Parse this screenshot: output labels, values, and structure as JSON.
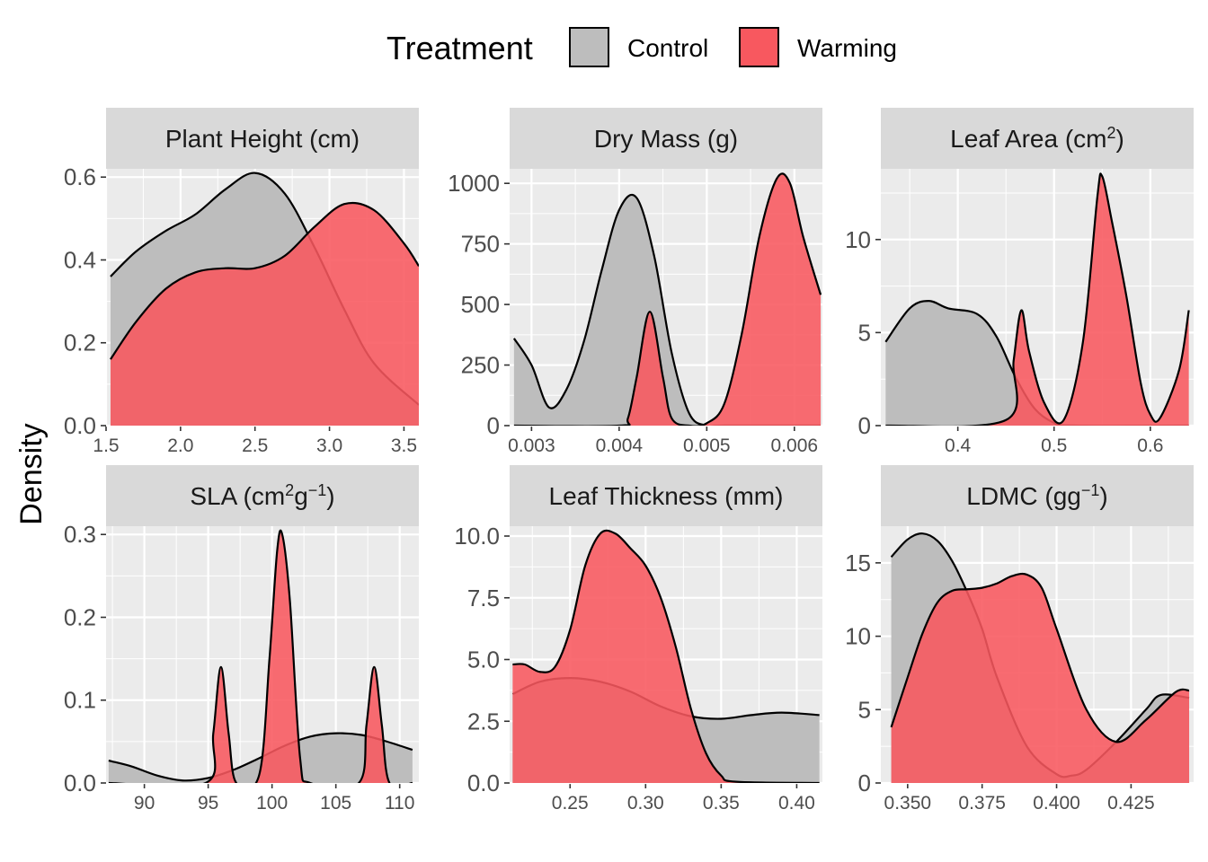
{
  "legend": {
    "title": "Treatment",
    "items": [
      {
        "label": "Control",
        "color": "#bdbdbd"
      },
      {
        "label": "Warming",
        "color": "#f8585f"
      }
    ]
  },
  "ylabel": "Density",
  "colors": {
    "control": "#bdbdbd",
    "warming": "#f8585f",
    "overlap": "#de4b50",
    "outline": "#000000"
  },
  "chart_data": [
    {
      "type": "area",
      "title": "Plant Height (cm)",
      "xlim": [
        1.5,
        3.6
      ],
      "ylim": [
        0,
        0.62
      ],
      "xticks": [
        1.5,
        2.0,
        2.5,
        3.0,
        3.5
      ],
      "xtick_labels": [
        "1.5",
        "2.0",
        "2.5",
        "3.0",
        "3.5"
      ],
      "yticks": [
        0.0,
        0.2,
        0.4,
        0.6
      ],
      "ytick_labels": [
        "0.0",
        "0.2",
        "0.4",
        "0.6"
      ],
      "series": [
        {
          "name": "Control",
          "x": [
            1.53,
            1.7,
            1.9,
            2.1,
            2.3,
            2.5,
            2.7,
            2.9,
            3.1,
            3.3,
            3.6
          ],
          "y": [
            0.36,
            0.42,
            0.47,
            0.51,
            0.57,
            0.61,
            0.56,
            0.43,
            0.28,
            0.15,
            0.05
          ]
        },
        {
          "name": "Warming",
          "x": [
            1.53,
            1.7,
            1.9,
            2.1,
            2.3,
            2.5,
            2.7,
            2.9,
            3.1,
            3.3,
            3.5,
            3.6
          ],
          "y": [
            0.16,
            0.25,
            0.33,
            0.37,
            0.38,
            0.38,
            0.41,
            0.48,
            0.535,
            0.52,
            0.44,
            0.385
          ]
        }
      ]
    },
    {
      "type": "area",
      "title": "Dry Mass (g)",
      "xlim": [
        0.00275,
        0.00632
      ],
      "ylim": [
        0,
        1060
      ],
      "xticks": [
        0.003,
        0.004,
        0.005,
        0.006
      ],
      "xtick_labels": [
        "0.003",
        "0.004",
        "0.005",
        "0.006"
      ],
      "yticks": [
        0,
        250,
        500,
        750,
        1000
      ],
      "ytick_labels": [
        "0",
        "250",
        "500",
        "750",
        "1000"
      ],
      "series": [
        {
          "name": "Control",
          "x": [
            0.0028,
            0.003,
            0.0032,
            0.0034,
            0.0036,
            0.0038,
            0.004,
            0.0042,
            0.0044,
            0.0046,
            0.0048,
            0.005,
            0.0052,
            0.0063
          ],
          "y": [
            360,
            250,
            75,
            150,
            350,
            640,
            890,
            940,
            700,
            300,
            50,
            0,
            0,
            0
          ]
        },
        {
          "name": "Warming",
          "x": [
            0.0028,
            0.004,
            0.0041,
            0.0042,
            0.00435,
            0.0045,
            0.0046,
            0.0048,
            0.005,
            0.0052,
            0.0054,
            0.0056,
            0.0058,
            0.00595,
            0.0061,
            0.0063
          ],
          "y": [
            0,
            0,
            30,
            200,
            470,
            200,
            30,
            0,
            10,
            90,
            380,
            780,
            1020,
            1000,
            780,
            540
          ]
        }
      ]
    },
    {
      "type": "area",
      "title": "Leaf Area (cm²)",
      "xlim": [
        0.32,
        0.645
      ],
      "ylim": [
        0,
        13.8
      ],
      "xticks": [
        0.4,
        0.5,
        0.6
      ],
      "xtick_labels": [
        "0.4",
        "0.5",
        "0.6"
      ],
      "yticks": [
        0,
        5,
        10
      ],
      "ytick_labels": [
        "0",
        "5",
        "10"
      ],
      "series": [
        {
          "name": "Control",
          "x": [
            0.325,
            0.35,
            0.37,
            0.39,
            0.42,
            0.44,
            0.46,
            0.48,
            0.5,
            0.52,
            0.64
          ],
          "y": [
            4.5,
            6.3,
            6.7,
            6.3,
            6.0,
            4.8,
            2.6,
            0.9,
            0.15,
            0.0,
            0.0
          ]
        },
        {
          "name": "Warming",
          "x": [
            0.325,
            0.45,
            0.458,
            0.466,
            0.474,
            0.49,
            0.51,
            0.53,
            0.545,
            0.55,
            0.56,
            0.575,
            0.59,
            0.6,
            0.61,
            0.63,
            0.64
          ],
          "y": [
            0.0,
            0.3,
            3.5,
            6.2,
            4.0,
            1.2,
            0.3,
            4.5,
            12.3,
            13.4,
            11.0,
            7.0,
            2.3,
            0.6,
            0.4,
            3.0,
            6.2
          ]
        }
      ]
    },
    {
      "type": "area",
      "title": "SLA (cm²g⁻¹)",
      "xlim": [
        87,
        111.5
      ],
      "ylim": [
        0,
        0.31
      ],
      "xticks": [
        90,
        95,
        100,
        105,
        110
      ],
      "xtick_labels": [
        "90",
        "95",
        "100",
        "105",
        "110"
      ],
      "yticks": [
        0.0,
        0.1,
        0.2,
        0.3
      ],
      "ytick_labels": [
        "0.0",
        "0.1",
        "0.2",
        "0.3"
      ],
      "series": [
        {
          "name": "Control",
          "x": [
            87.2,
            89,
            91,
            93,
            95,
            97,
            99,
            101,
            103,
            105,
            107,
            109,
            111
          ],
          "y": [
            0.027,
            0.02,
            0.009,
            0.003,
            0.006,
            0.016,
            0.03,
            0.045,
            0.056,
            0.06,
            0.058,
            0.05,
            0.04
          ]
        },
        {
          "name": "Warming",
          "x": [
            87.2,
            94.8,
            95.4,
            96.0,
            96.6,
            97.2,
            99.0,
            99.8,
            100.4,
            100.8,
            101.4,
            102.2,
            103.0,
            106.8,
            107.4,
            108.0,
            108.6,
            109.2,
            111
          ],
          "y": [
            0.0,
            0.0,
            0.06,
            0.14,
            0.06,
            0.0,
            0.01,
            0.15,
            0.28,
            0.3,
            0.22,
            0.03,
            0.0,
            0.0,
            0.07,
            0.14,
            0.07,
            0.0,
            0.0
          ]
        }
      ]
    },
    {
      "type": "area",
      "title": "Leaf Thickness (mm)",
      "xlim": [
        0.21,
        0.417
      ],
      "ylim": [
        0,
        10.4
      ],
      "xticks": [
        0.25,
        0.3,
        0.35,
        0.4
      ],
      "xtick_labels": [
        "0.25",
        "0.30",
        "0.35",
        "0.40"
      ],
      "yticks": [
        0.0,
        2.5,
        5.0,
        7.5,
        10.0
      ],
      "ytick_labels": [
        "0.0",
        "2.5",
        "5.0",
        "7.5",
        "10.0"
      ],
      "series": [
        {
          "name": "Control",
          "x": [
            0.212,
            0.23,
            0.25,
            0.27,
            0.29,
            0.31,
            0.33,
            0.35,
            0.37,
            0.39,
            0.415
          ],
          "y": [
            3.6,
            4.1,
            4.25,
            4.1,
            3.7,
            3.1,
            2.7,
            2.6,
            2.75,
            2.85,
            2.75
          ]
        },
        {
          "name": "Warming",
          "x": [
            0.212,
            0.22,
            0.23,
            0.24,
            0.25,
            0.26,
            0.27,
            0.28,
            0.29,
            0.3,
            0.31,
            0.32,
            0.33,
            0.34,
            0.35,
            0.36,
            0.415
          ],
          "y": [
            4.8,
            4.8,
            4.5,
            4.7,
            6.2,
            8.8,
            10.1,
            10.1,
            9.5,
            8.8,
            7.5,
            5.5,
            3.0,
            1.2,
            0.3,
            0.05,
            0.0
          ]
        }
      ]
    },
    {
      "type": "area",
      "title": "LDMC (gg⁻¹)",
      "xlim": [
        0.341,
        0.446
      ],
      "ylim": [
        0,
        17.5
      ],
      "xticks": [
        0.35,
        0.375,
        0.4,
        0.425
      ],
      "xtick_labels": [
        "0.350",
        "0.375",
        "0.400",
        "0.425"
      ],
      "yticks": [
        0,
        5,
        10,
        15
      ],
      "ytick_labels": [
        "0",
        "5",
        "10",
        "15"
      ],
      "series": [
        {
          "name": "Control",
          "x": [
            0.3445,
            0.35,
            0.355,
            0.36,
            0.365,
            0.37,
            0.375,
            0.38,
            0.39,
            0.4,
            0.405,
            0.41,
            0.42,
            0.43,
            0.435,
            0.4445
          ],
          "y": [
            15.4,
            16.6,
            17.0,
            16.5,
            15.1,
            13.0,
            10.5,
            7.2,
            2.5,
            0.6,
            0.5,
            0.9,
            2.8,
            5.0,
            6.0,
            5.8
          ]
        },
        {
          "name": "Warming",
          "x": [
            0.3445,
            0.35,
            0.355,
            0.36,
            0.365,
            0.37,
            0.375,
            0.38,
            0.385,
            0.39,
            0.395,
            0.4,
            0.41,
            0.42,
            0.43,
            0.44,
            0.4445
          ],
          "y": [
            3.8,
            7.2,
            10.2,
            12.3,
            13.1,
            13.2,
            13.3,
            13.6,
            14.1,
            14.2,
            13.3,
            10.5,
            5.0,
            2.8,
            4.3,
            6.2,
            6.3
          ]
        }
      ]
    }
  ]
}
